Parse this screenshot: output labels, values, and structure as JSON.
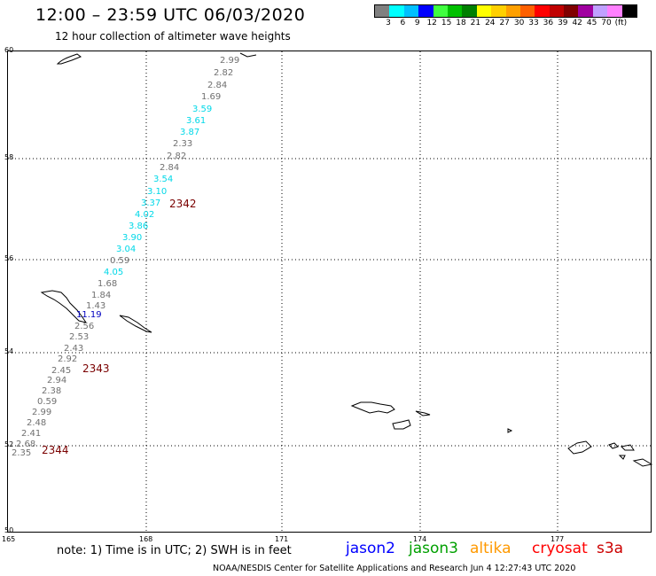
{
  "header": {
    "title": "12:00 – 23:59 UTC 06/03/2020",
    "subtitle": "12 hour collection of altimeter wave heights"
  },
  "legend": {
    "colors": [
      "#808080",
      "#00ffff",
      "#00c0ff",
      "#0000ff",
      "#40ff40",
      "#00c000",
      "#008000",
      "#ffff00",
      "#ffd000",
      "#ffa000",
      "#ff6000",
      "#ff0000",
      "#c00000",
      "#800000",
      "#a000a0",
      "#c0a0ff",
      "#ff80ff",
      "#000000"
    ],
    "labels": [
      "3",
      "6",
      "9",
      "12",
      "15",
      "18",
      "21",
      "24",
      "27",
      "30",
      "33",
      "36",
      "39",
      "42",
      "45",
      "70",
      "(ft)"
    ]
  },
  "axes": {
    "y_labels": [
      "60",
      "58",
      "56",
      "54",
      "52",
      "50"
    ],
    "x_labels": [
      "165",
      "168",
      "171",
      "174",
      "177"
    ]
  },
  "points": [
    {
      "v": "2.99",
      "c": "#707070"
    },
    {
      "v": "2.82",
      "c": "#707070"
    },
    {
      "v": "2.84",
      "c": "#707070"
    },
    {
      "v": "1.69",
      "c": "#707070"
    },
    {
      "v": "3.59",
      "c": "#00d8e8"
    },
    {
      "v": "3.61",
      "c": "#00d8e8"
    },
    {
      "v": "3.87",
      "c": "#00d8e8"
    },
    {
      "v": "2.33",
      "c": "#707070"
    },
    {
      "v": "2.82",
      "c": "#707070"
    },
    {
      "v": "2.84",
      "c": "#707070"
    },
    {
      "v": "3.54",
      "c": "#00d8e8"
    },
    {
      "v": "3.10",
      "c": "#00d8e8"
    },
    {
      "v": "3.37",
      "c": "#00d8e8"
    },
    {
      "v": "4.02",
      "c": "#00d8e8"
    },
    {
      "v": "3.86",
      "c": "#00d8e8"
    },
    {
      "v": "3.90",
      "c": "#00d8e8"
    },
    {
      "v": "3.04",
      "c": "#00d8e8"
    },
    {
      "v": "0.59",
      "c": "#707070"
    },
    {
      "v": "4.05",
      "c": "#00d8e8"
    },
    {
      "v": "1.68",
      "c": "#707070"
    },
    {
      "v": "1.84",
      "c": "#707070"
    },
    {
      "v": "1.43",
      "c": "#707070"
    },
    {
      "v": "11.19",
      "c": "#0000c0"
    },
    {
      "v": "2.56",
      "c": "#707070"
    },
    {
      "v": "2.53",
      "c": "#707070"
    },
    {
      "v": "2.43",
      "c": "#707070"
    },
    {
      "v": "2.92",
      "c": "#707070"
    },
    {
      "v": "2.45",
      "c": "#707070"
    },
    {
      "v": "2.94",
      "c": "#707070"
    },
    {
      "v": "2.38",
      "c": "#707070"
    },
    {
      "v": "0.59",
      "c": "#707070"
    },
    {
      "v": "2.99",
      "c": "#707070"
    },
    {
      "v": "2.48",
      "c": "#707070"
    },
    {
      "v": "2.41",
      "c": "#707070"
    },
    {
      "v": "2.68",
      "c": "#707070"
    },
    {
      "v": "2.35",
      "c": "#707070"
    }
  ],
  "passes": [
    "2342",
    "2343",
    "2344"
  ],
  "footer": {
    "note": "note: 1) Time is in UTC; 2) SWH is in feet",
    "satellites": [
      {
        "name": "jason2",
        "color": "#0000ff"
      },
      {
        "name": "jason3",
        "color": "#00a000"
      },
      {
        "name": "altika",
        "color": "#ff9900"
      },
      {
        "name": "cryosat",
        "color": "#ff0000"
      },
      {
        "name": "s3a",
        "color": "#cc0000"
      }
    ],
    "credit": "NOAA/NESDIS Center for Satellite Applications and Research    Jun  4 12:27:43 UTC 2020"
  }
}
